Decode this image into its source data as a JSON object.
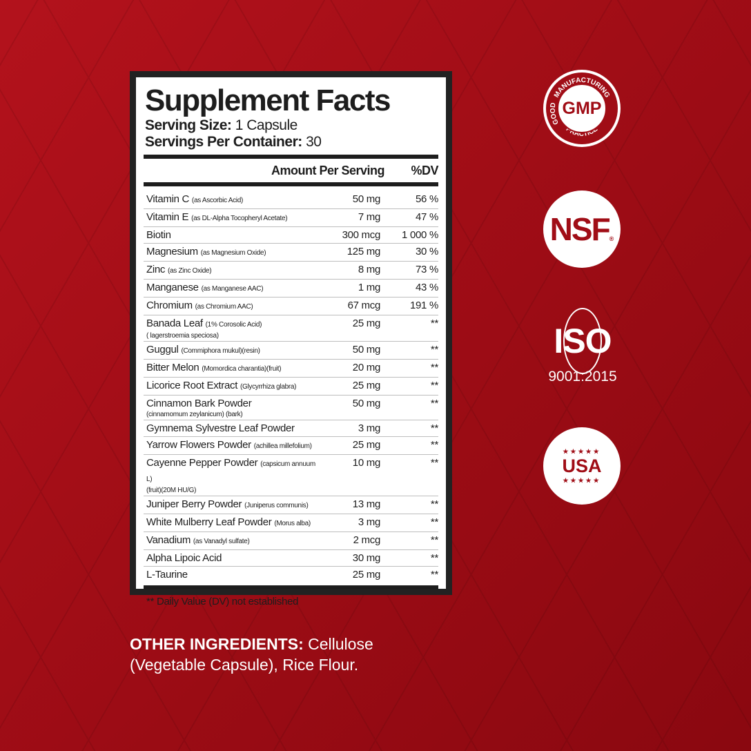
{
  "label": {
    "title": "Supplement Facts",
    "serving_size_label": "Serving Size:",
    "serving_size": " 1 Capsule",
    "servings_label": "Servings Per Container:",
    "servings": " 30",
    "col_amount": "Amount Per Serving",
    "col_dv": "%DV",
    "ingredients": [
      {
        "name": "Vitamin C",
        "note": "(as Ascorbic Acid)",
        "amount": "50 mg",
        "dv": "56 %"
      },
      {
        "name": "Vitamin E",
        "note": "(as DL-Alpha Tocopheryl Acetate)",
        "amount": "7 mg",
        "dv": "47 %"
      },
      {
        "name": "Biotin",
        "amount": "300 mcg",
        "dv": "1 000 %"
      },
      {
        "name": "Magnesium",
        "note": "(as Magnesium Oxide)",
        "amount": "125 mg",
        "dv": "30 %"
      },
      {
        "name": "Zinc",
        "note": "(as Zinc Oxide)",
        "amount": "8 mg",
        "dv": "73 %"
      },
      {
        "name": "Manganese",
        "note": "(as Manganese AAC)",
        "amount": "1 mg",
        "dv": "43 %"
      },
      {
        "name": "Chromium",
        "note": "(as Chromium AAC)",
        "amount": "67 mcg",
        "dv": "191 %"
      },
      {
        "name": "Banada Leaf",
        "note": "(1% Corosolic Acid)",
        "sub": "( lagerstroemia speciosa)",
        "amount": "25 mg",
        "dv": "**"
      },
      {
        "name": "Guggul",
        "note": "(Commiphora mukul)(resin)",
        "amount": "50 mg",
        "dv": "**"
      },
      {
        "name": "Bitter Melon",
        "note": " (Momordica charantia)(fruit)",
        "amount": "20 mg",
        "dv": "**"
      },
      {
        "name": "Licorice Root Extract",
        "note": " (Glycyrrhiza glabra)",
        "amount": "25 mg",
        "dv": "**"
      },
      {
        "name": "Cinnamon Bark Powder",
        "sub": "(cinnamomum zeylanicum) (bark)",
        "amount": "50 mg",
        "dv": "**"
      },
      {
        "name": "Gymnema Sylvestre Leaf Powder",
        "amount": "3 mg",
        "dv": "**"
      },
      {
        "name": "Yarrow Flowers Powder",
        "note": "(achillea millefolium)",
        "amount": "25 mg",
        "dv": "**"
      },
      {
        "name": "Cayenne Pepper Powder",
        "note": "(capsicum annuum L)",
        "sub": "(fruit)(20M HU/G)",
        "amount": "10 mg",
        "dv": "**"
      },
      {
        "name": "Juniper Berry Powder",
        "note": "(Juniperus communis)",
        "amount": "13 mg",
        "dv": "**"
      },
      {
        "name": "White Mulberry Leaf Powder",
        "note": "(Morus alba)",
        "amount": "3 mg",
        "dv": "**"
      },
      {
        "name": "Vanadium",
        "note": "(as Vanadyl sulfate)",
        "amount": "2 mcg",
        "dv": "**"
      },
      {
        "name": "Alpha Lipoic Acid",
        "amount": "30 mg",
        "dv": "**"
      },
      {
        "name": "L-Taurine",
        "amount": "25 mg",
        "dv": "**"
      }
    ],
    "footnote": "** Daily Value (DV) not established"
  },
  "other_ingredients": {
    "label": "OTHER INGREDIENTS:",
    "text": " Cellulose (Vegetable Capsule), Rice Flour."
  },
  "badges": {
    "gmp": {
      "center": "GMP",
      "top": "MANUFACTURING",
      "left": "GOOD",
      "bottom": "PRACTICE"
    },
    "nsf": {
      "text": "NSF",
      "reg": "®"
    },
    "iso": {
      "text": "ISO",
      "number": "9001:2015"
    },
    "usa": {
      "text": "USA",
      "stars": "★★★★★"
    }
  },
  "colors": {
    "background": "#a00d16",
    "label_border": "#222222"
  }
}
